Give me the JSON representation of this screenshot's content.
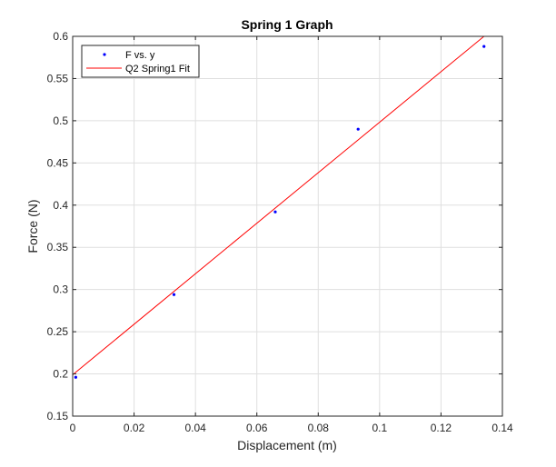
{
  "chart_data": {
    "type": "scatter",
    "title": "Spring 1 Graph",
    "xlabel": "Displacement (m)",
    "ylabel": "Force (N)",
    "xlim": [
      0,
      0.14
    ],
    "ylim": [
      0.15,
      0.6
    ],
    "xticks": [
      0,
      0.02,
      0.04,
      0.06,
      0.08,
      0.1,
      0.12,
      0.14
    ],
    "yticks": [
      0.15,
      0.2,
      0.25,
      0.3,
      0.35,
      0.4,
      0.45,
      0.5,
      0.55,
      0.6
    ],
    "xtick_labels": [
      "0",
      "0.02",
      "0.04",
      "0.06",
      "0.08",
      "0.1",
      "0.12",
      "0.14"
    ],
    "ytick_labels": [
      "0.15",
      "0.2",
      "0.25",
      "0.3",
      "0.35",
      "0.4",
      "0.45",
      "0.5",
      "0.55",
      "0.6"
    ],
    "grid": true,
    "legend_position": "top-left",
    "series": [
      {
        "name": "F vs. y",
        "kind": "points",
        "color": "#0000ff",
        "x": [
          0.001,
          0.033,
          0.066,
          0.093,
          0.134
        ],
        "y": [
          0.196,
          0.294,
          0.392,
          0.49,
          0.588
        ]
      },
      {
        "name": "Q2 Spring1 Fit",
        "kind": "line",
        "color": "#ff0000",
        "x": [
          0,
          0.134
        ],
        "y": [
          0.199,
          0.6
        ]
      }
    ]
  }
}
